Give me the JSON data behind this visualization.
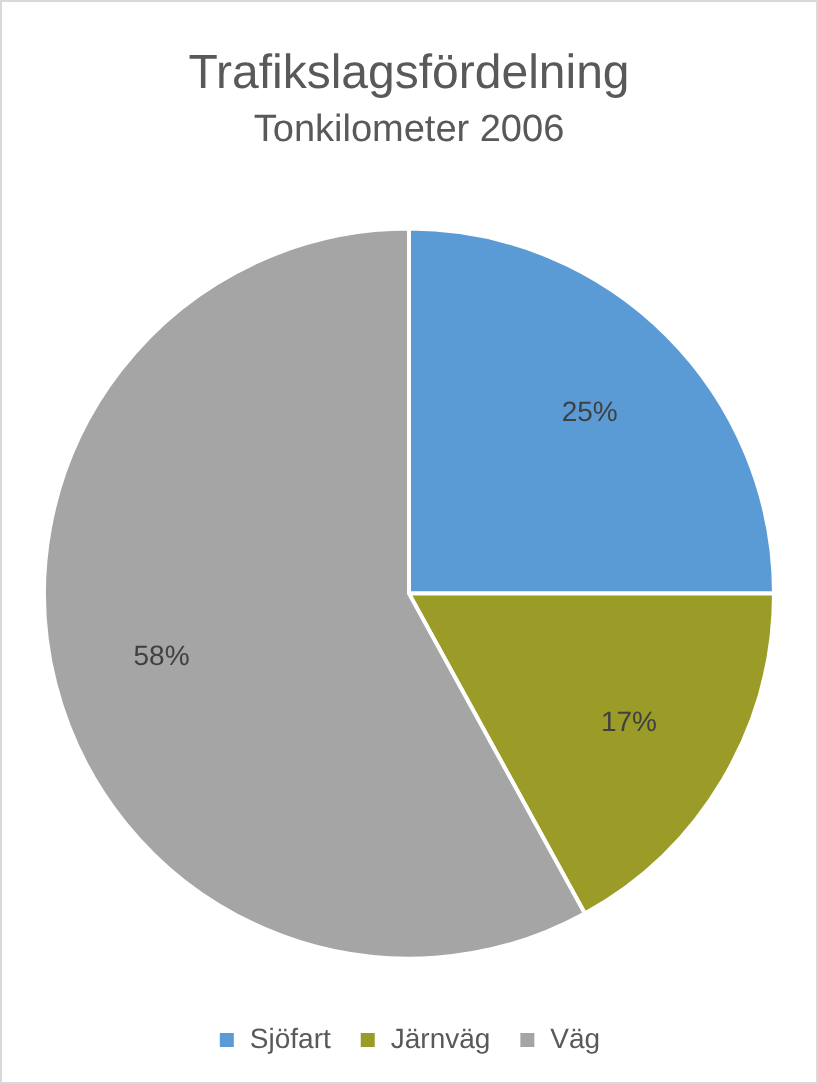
{
  "chart_data": {
    "type": "pie",
    "title": "Trafikslagsfördelning",
    "subtitle": "Tonkilometer 2006",
    "categories": [
      "Sjöfart",
      "Järnväg",
      "Väg"
    ],
    "values": [
      25,
      17,
      58
    ],
    "value_labels": [
      "25%",
      "17%",
      "58%"
    ],
    "colors": [
      "#5b9bd5",
      "#9b9b27",
      "#a5a5a5"
    ],
    "legend": "bottom"
  }
}
